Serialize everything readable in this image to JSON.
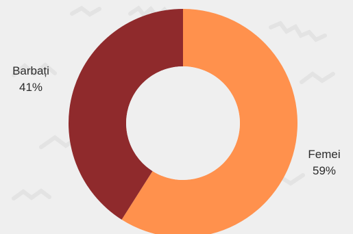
{
  "chart_data": {
    "type": "pie",
    "variant": "donut",
    "title": "",
    "slices": [
      {
        "label": "Femei",
        "value": 59,
        "value_label": "59%",
        "color": "#ff914d"
      },
      {
        "label": "Barbați",
        "value": 41,
        "value_label": "41%",
        "color": "#8f2a2c"
      }
    ],
    "start_angle": "top",
    "direction": "clockwise",
    "background_color": "#efefef"
  }
}
